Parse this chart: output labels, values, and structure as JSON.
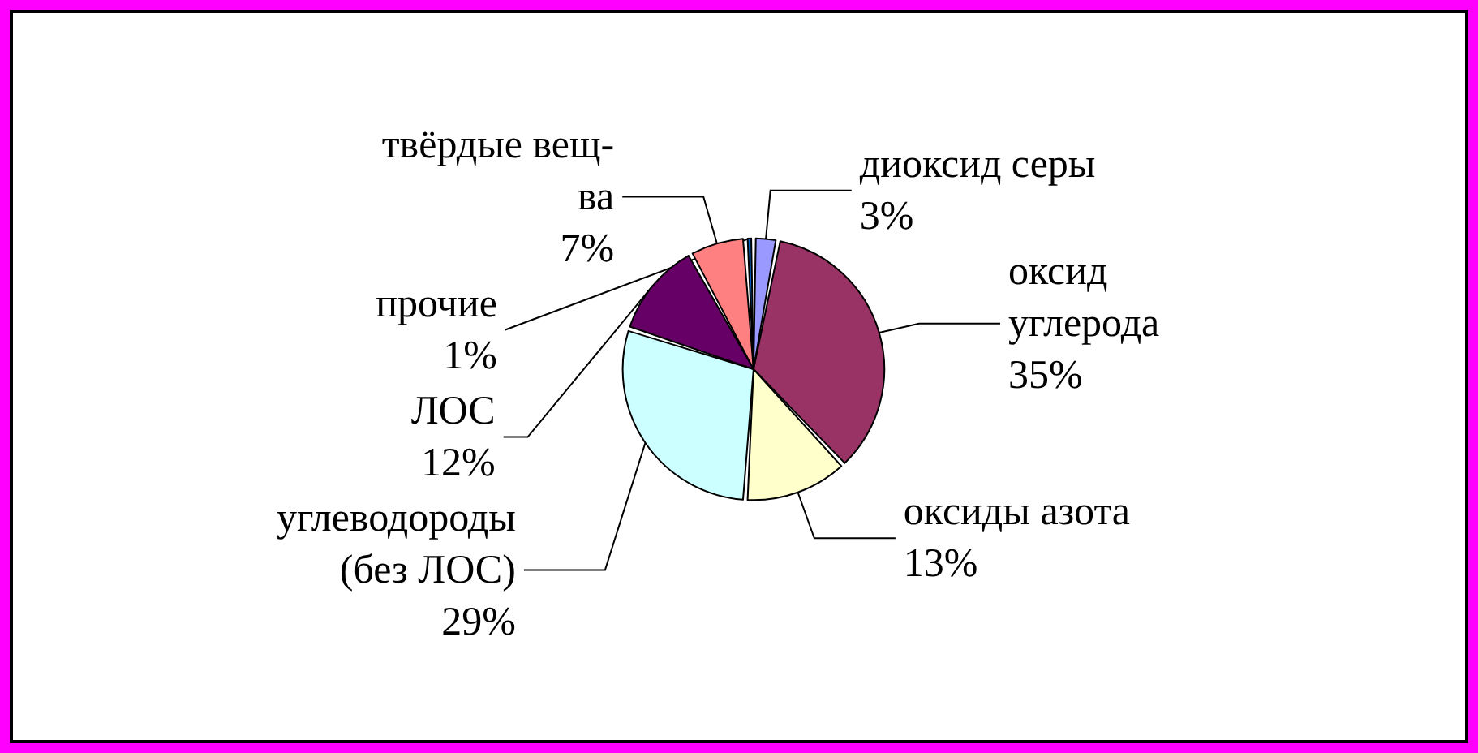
{
  "chart_data": {
    "type": "pie",
    "categories": [
      "диоксид серы",
      "оксид углерода",
      "оксиды азота",
      "углеводороды (без ЛОС)",
      "ЛОС",
      "твёрдые вещ-ва",
      "прочие"
    ],
    "values": [
      3,
      35,
      13,
      29,
      12,
      7,
      1
    ],
    "colors": [
      "#9999ff",
      "#993366",
      "#ffffcc",
      "#ccffff",
      "#660066",
      "#ff8080",
      "#0066cc"
    ],
    "value_labels": [
      "3%",
      "35%",
      "13%",
      "29%",
      "12%",
      "7%",
      "1%"
    ]
  }
}
